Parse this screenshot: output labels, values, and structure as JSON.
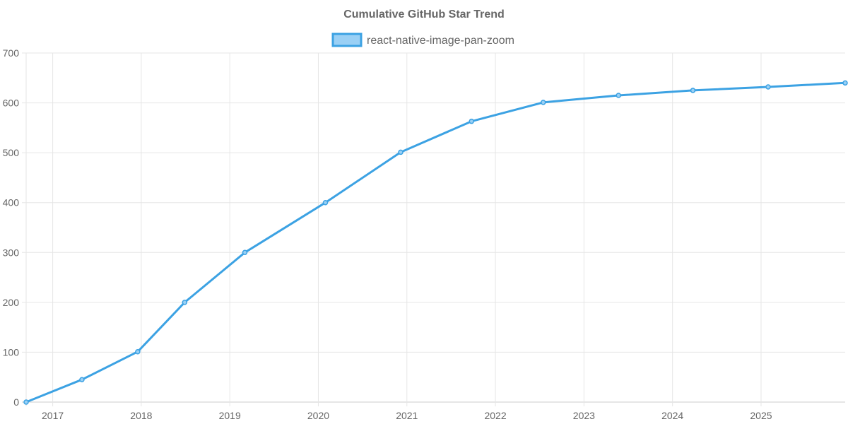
{
  "chart_data": {
    "type": "line",
    "title": "Cumulative GitHub Star Trend",
    "xlabel": "",
    "ylabel": "",
    "legend_position": "top-center",
    "grid": true,
    "x_ticks": [
      "2017",
      "2018",
      "2019",
      "2020",
      "2021",
      "2022",
      "2023",
      "2024",
      "2025"
    ],
    "x_range": [
      2016.7,
      2025.95
    ],
    "y_ticks": [
      0,
      100,
      200,
      300,
      400,
      500,
      600,
      700
    ],
    "ylim": [
      0,
      700
    ],
    "series": [
      {
        "name": "react-native-image-pan-zoom",
        "color": "#3ca2e3",
        "fill_color": "#9ad0f5",
        "points": [
          {
            "x": 2016.7,
            "y": 0
          },
          {
            "x": 2017.33,
            "y": 45
          },
          {
            "x": 2017.96,
            "y": 101
          },
          {
            "x": 2018.49,
            "y": 200
          },
          {
            "x": 2019.17,
            "y": 300
          },
          {
            "x": 2020.08,
            "y": 400
          },
          {
            "x": 2020.93,
            "y": 501
          },
          {
            "x": 2021.73,
            "y": 563
          },
          {
            "x": 2022.54,
            "y": 601
          },
          {
            "x": 2023.39,
            "y": 615
          },
          {
            "x": 2024.23,
            "y": 625
          },
          {
            "x": 2025.08,
            "y": 632
          },
          {
            "x": 2025.95,
            "y": 640
          }
        ]
      }
    ]
  }
}
